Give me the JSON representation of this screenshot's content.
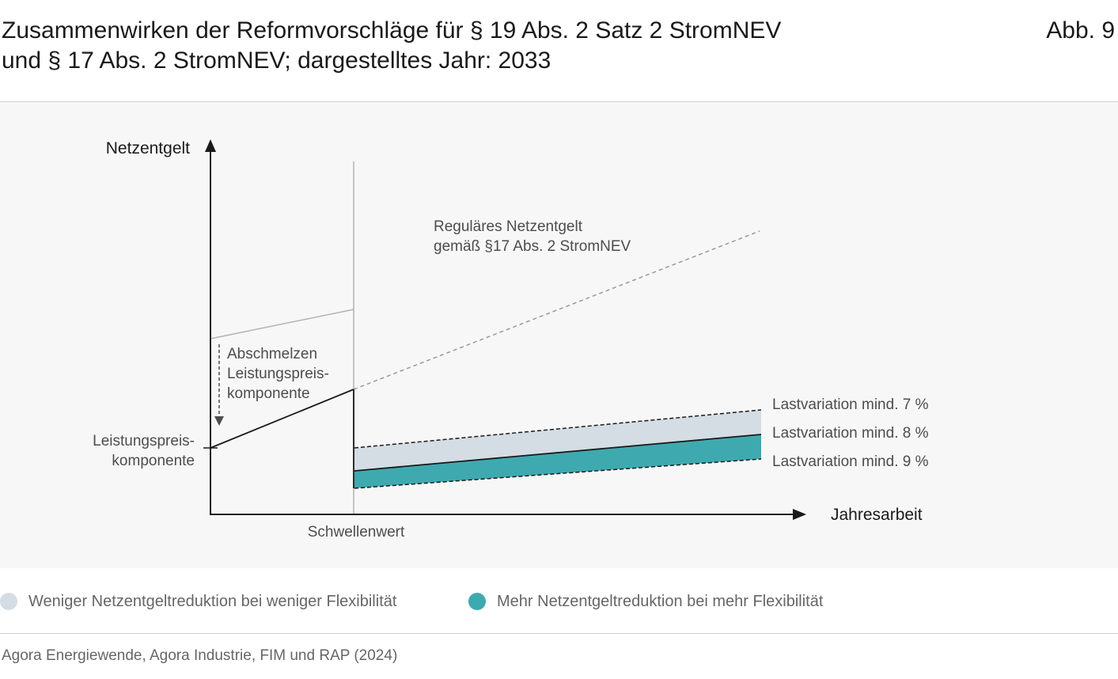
{
  "header": {
    "title_line1": "Zusammenwirken der Reformvorschläge für § 19 Abs. 2 Satz 2 StromNEV",
    "title_line2": "und § 17 Abs. 2 StromNEV; dargestelltes Jahr: 2033",
    "figure_label": "Abb. 9"
  },
  "diagram": {
    "y_axis_label": "Netzentgelt",
    "x_axis_label": "Jahresarbeit",
    "threshold_label": "Schwellenwert",
    "regular_fee_line1": "Reguläres Netzentgelt",
    "regular_fee_line2": "gemäß §17 Abs. 2 StromNEV",
    "melt_line1": "Abschmelzen",
    "melt_line2": "Leistungspreis-",
    "melt_line3": "komponente",
    "capacity_line1": "Leistungspreis-",
    "capacity_line2": "komponente",
    "variation_7": "Lastvariation mind. 7 %",
    "variation_8": "Lastvariation mind. 8 %",
    "variation_9": "Lastvariation mind. 9 %",
    "colors": {
      "less_reduction": "#d3dde3",
      "more_reduction": "#3fa9b0",
      "regular_line": "#999999",
      "old_line": "#b3b3b3"
    }
  },
  "legend": {
    "less_flex": "Weniger Netzentgeltreduktion bei weniger Flexibilität",
    "more_flex": "Mehr Netzentgeltreduktion bei mehr Flexibilität"
  },
  "source": "Agora Energiewende, Agora Industrie, FIM und RAP (2024)"
}
